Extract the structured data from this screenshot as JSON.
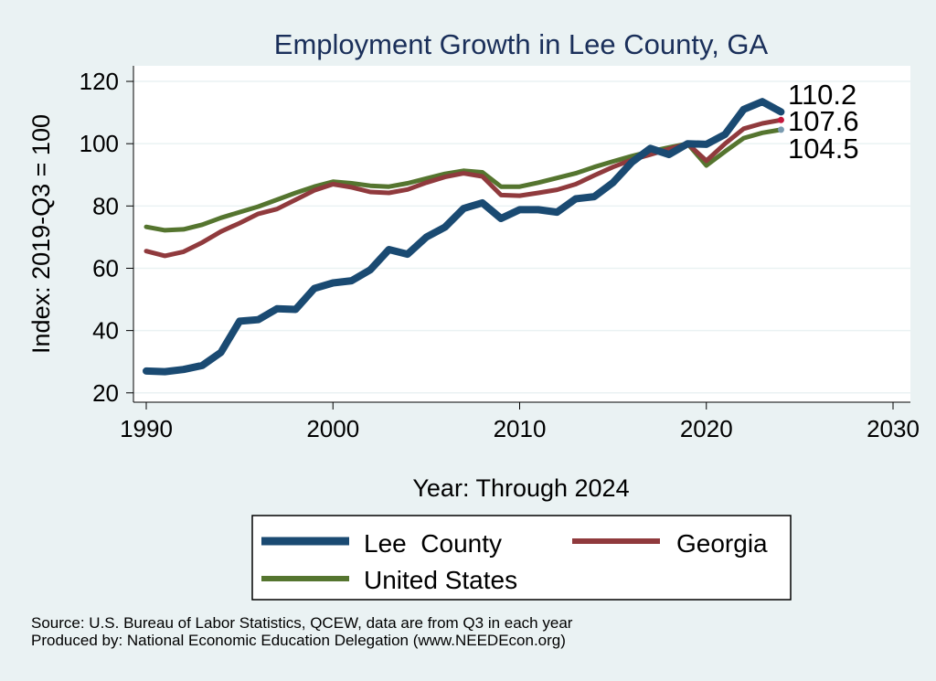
{
  "colors": {
    "background": "#eaf2f3",
    "plot_background": "#ffffff",
    "title": "#1a2f5a",
    "grid": "#eaf2f3",
    "lee": "#1a4a72",
    "georgia": "#903a3d",
    "us": "#55752f",
    "end_marker": "#c4183c",
    "us_marker": "#7a9bb0"
  },
  "chart_data": {
    "type": "line",
    "title": "Employment Growth in Lee County, GA",
    "xlabel": "Year: Through 2024",
    "ylabel": "Index: 2019-Q3 = 100",
    "xlim": [
      1990,
      2030
    ],
    "ylim": [
      17,
      125
    ],
    "xticks": [
      1990,
      2000,
      2010,
      2020,
      2030
    ],
    "yticks": [
      20,
      40,
      60,
      80,
      100,
      120
    ],
    "legend_position": "bottom",
    "x": [
      1990,
      1991,
      1992,
      1993,
      1994,
      1995,
      1996,
      1997,
      1998,
      1999,
      2000,
      2001,
      2002,
      2003,
      2004,
      2005,
      2006,
      2007,
      2008,
      2009,
      2010,
      2011,
      2012,
      2013,
      2014,
      2015,
      2016,
      2017,
      2018,
      2019,
      2020,
      2021,
      2022,
      2023,
      2024
    ],
    "series": [
      {
        "name": "Lee  County",
        "key": "lee",
        "values": [
          27.0,
          26.8,
          27.5,
          28.8,
          33.0,
          43.0,
          43.5,
          47.0,
          46.8,
          53.5,
          55.3,
          56.0,
          59.5,
          66.0,
          64.5,
          70.0,
          73.2,
          79.2,
          81.0,
          76.0,
          78.8,
          78.8,
          78.0,
          82.3,
          83.0,
          87.5,
          94.0,
          98.5,
          96.5,
          100.0,
          99.8,
          103.0,
          111.0,
          113.5,
          110.2
        ],
        "end_label": "110.2"
      },
      {
        "name": "Georgia",
        "key": "georgia",
        "values": [
          65.5,
          64.0,
          65.3,
          68.3,
          71.8,
          74.5,
          77.5,
          79.0,
          82.0,
          85.0,
          87.0,
          86.0,
          84.5,
          84.2,
          85.3,
          87.5,
          89.3,
          90.5,
          89.5,
          83.5,
          83.3,
          84.2,
          85.2,
          87.0,
          89.8,
          92.5,
          94.8,
          96.5,
          98.3,
          100.0,
          94.5,
          100.0,
          104.8,
          106.5,
          107.6
        ],
        "end_label": "107.6"
      },
      {
        "name": "United States",
        "key": "us",
        "values": [
          73.3,
          72.2,
          72.5,
          74.0,
          76.2,
          78.0,
          79.8,
          82.0,
          84.2,
          86.2,
          87.8,
          87.3,
          86.5,
          86.2,
          87.3,
          88.8,
          90.3,
          91.3,
          90.8,
          86.2,
          86.2,
          87.5,
          89.0,
          90.5,
          92.5,
          94.3,
          96.0,
          97.5,
          98.8,
          100.0,
          93.0,
          97.5,
          101.8,
          103.5,
          104.5
        ],
        "end_label": "104.5"
      }
    ]
  },
  "notes": {
    "source": "Source: U.S. Bureau of Labor Statistics, QCEW, data are from Q3 in each year",
    "produced": "Produced by: National Economic Education Delegation (www.NEEDEcon.org)"
  }
}
